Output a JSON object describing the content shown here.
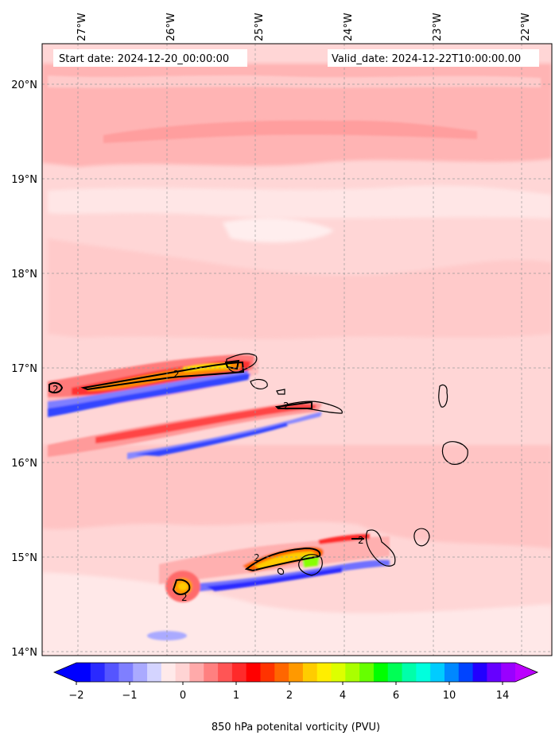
{
  "map": {
    "start_date_label": "Start date: 2024-12-20_00:00:00",
    "valid_date_label": "Valid_date: 2024-12-22T10:00:00.00",
    "lon_ticks": [
      {
        "lon": -27,
        "label": "27°W"
      },
      {
        "lon": -26,
        "label": "26°W"
      },
      {
        "lon": -25,
        "label": "25°W"
      },
      {
        "lon": -24,
        "label": "24°W"
      },
      {
        "lon": -23,
        "label": "23°W"
      },
      {
        "lon": -22,
        "label": "22°W"
      }
    ],
    "lat_ticks": [
      {
        "lat": 20,
        "label": "20°N"
      },
      {
        "lat": 19,
        "label": "19°N"
      },
      {
        "lat": 18,
        "label": "18°N"
      },
      {
        "lat": 17,
        "label": "17°N"
      },
      {
        "lat": 16,
        "label": "16°N"
      },
      {
        "lat": 15,
        "label": "15°N"
      },
      {
        "lat": 14,
        "label": "14°N"
      }
    ],
    "extent": {
      "lon_min": -27.4,
      "lon_max": -21.65,
      "lat_min": 13.95,
      "lat_max": 20.45
    },
    "contour_level_label": "2"
  },
  "colorbar": {
    "title": "850 hPa potenital vorticity (PVU)",
    "tick_labels": [
      "−2",
      "−1",
      "0",
      "1",
      "2",
      "4",
      "6",
      "10",
      "14"
    ],
    "colors": [
      "#0000ff",
      "#2a2aff",
      "#5555ff",
      "#7f7fff",
      "#aaaaff",
      "#d4d4ff",
      "#ffeaea",
      "#ffd4d4",
      "#ffaaaa",
      "#ff8080",
      "#ff5555",
      "#ff2a2a",
      "#ff0000",
      "#ff3300",
      "#ff6600",
      "#ff9900",
      "#ffcc00",
      "#ffee00",
      "#ddff00",
      "#aaff00",
      "#66ff00",
      "#00ff00",
      "#00ff55",
      "#00ffaa",
      "#00ffdd",
      "#00ccff",
      "#0088ff",
      "#0044ff",
      "#2200ff",
      "#6600ff",
      "#9900ff"
    ],
    "under_color": "#0000ff",
    "over_color": "#bb00ff"
  }
}
